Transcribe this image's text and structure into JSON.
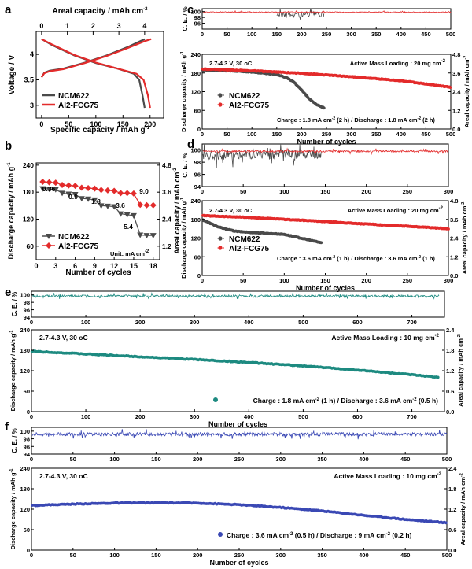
{
  "colors": {
    "black": "#4a4a4a",
    "red": "#e32b2b",
    "teal": "#1d8a80",
    "blue": "#3a48b4",
    "grid": "#000000"
  },
  "chart_data": [
    {
      "id": "a",
      "panel_label": "a",
      "type": "line",
      "xlabel": "Specific capacity / mAh g",
      "xlabel_sup": "-1",
      "top_xlabel": "Areal capacity / mAh cm",
      "top_xlabel_sup": "-2",
      "ylabel": "Voltage / V",
      "xlim": [
        -10,
        225
      ],
      "ylim": [
        2.75,
        4.45
      ],
      "xticks": [
        0,
        50,
        100,
        150,
        200
      ],
      "top_xticks": [
        0,
        1,
        2,
        3,
        4
      ],
      "yticks": [
        3.0,
        3.5,
        4.0
      ],
      "legend": [
        {
          "name": "NCM622",
          "color": "black"
        },
        {
          "name": "Al2-FCG75",
          "color": "red"
        }
      ],
      "series": [
        {
          "name": "NCM622 charge",
          "color": "black",
          "x": [
            0,
            5,
            15,
            40,
            80,
            120,
            160,
            180,
            190
          ],
          "y": [
            3.55,
            3.64,
            3.68,
            3.72,
            3.84,
            3.98,
            4.15,
            4.25,
            4.3
          ]
        },
        {
          "name": "NCM622 discharge",
          "color": "black",
          "x": [
            0,
            20,
            60,
            100,
            140,
            170,
            180,
            186,
            190
          ],
          "y": [
            4.3,
            4.18,
            3.98,
            3.83,
            3.72,
            3.62,
            3.5,
            3.2,
            2.95
          ]
        },
        {
          "name": "Al2-FCG75 charge",
          "color": "red",
          "x": [
            0,
            5,
            15,
            40,
            80,
            120,
            160,
            190,
            202
          ],
          "y": [
            3.55,
            3.63,
            3.67,
            3.71,
            3.83,
            3.97,
            4.13,
            4.26,
            4.3
          ]
        },
        {
          "name": "Al2-FCG75 discharge",
          "color": "red",
          "x": [
            0,
            20,
            60,
            100,
            140,
            175,
            188,
            196,
            200
          ],
          "y": [
            4.3,
            4.19,
            3.99,
            3.84,
            3.72,
            3.62,
            3.5,
            3.2,
            2.95
          ]
        }
      ]
    },
    {
      "id": "b",
      "panel_label": "b",
      "type": "scatter",
      "xlabel": "Number of cycles",
      "ylabel": "Discharge capacity / mAh g",
      "ylabel_sup": "-1",
      "ylabel_right": "Areal capacity / mAh cm",
      "ylabel_right_sup": "-2",
      "xlim": [
        0,
        19
      ],
      "ylim": [
        30,
        245
      ],
      "right_ylim": [
        0.6,
        4.9
      ],
      "xticks": [
        0,
        3,
        6,
        9,
        12,
        15,
        18
      ],
      "yticks": [
        60,
        120,
        180,
        240
      ],
      "right_yticks": [
        1.2,
        2.4,
        3.6,
        4.8
      ],
      "legend": [
        {
          "name": "NCM622",
          "color": "black"
        },
        {
          "name": "Al2-FCG75",
          "color": "red"
        }
      ],
      "unit_note": "Unit: mA cm",
      "unit_note_sup": "-2",
      "rate_labels": [
        "0.36",
        "0.9",
        "1.8",
        "3.6",
        "5.4",
        "9.0"
      ],
      "series": [
        {
          "name": "NCM622",
          "color": "black",
          "marker": "triangle-down",
          "x": [
            1,
            2,
            3,
            4,
            5,
            6,
            7,
            8,
            9,
            10,
            11,
            12,
            13,
            14,
            15,
            16,
            17,
            18
          ],
          "y": [
            188,
            187,
            186,
            178,
            176,
            175,
            166,
            165,
            163,
            150,
            149,
            148,
            132,
            130,
            128,
            85,
            84,
            84
          ]
        },
        {
          "name": "Al2-FCG75",
          "color": "red",
          "marker": "diamond",
          "x": [
            1,
            2,
            3,
            4,
            5,
            6,
            7,
            8,
            9,
            10,
            11,
            12,
            13,
            14,
            15,
            16,
            17,
            18
          ],
          "y": [
            203,
            202,
            201,
            196,
            195,
            194,
            190,
            189,
            188,
            185,
            184,
            183,
            178,
            178,
            177,
            152,
            151,
            151
          ]
        }
      ]
    },
    {
      "id": "c",
      "panel_label": "c",
      "type": "scatter",
      "ce_ylabel": "C. E. / %",
      "ce_ylim": [
        94,
        101
      ],
      "ce_yticks": [
        96,
        98,
        100
      ],
      "ce_series": [
        {
          "name": "NCM622",
          "color": "black",
          "xmin": 150,
          "xmax": 245,
          "base": 99.0,
          "noise": 2.0
        },
        {
          "name": "Al2-FCG75",
          "color": "red",
          "xmin": 1,
          "xmax": 500,
          "base": 99.8,
          "noise": 0.3
        }
      ],
      "xlabel": "Number of cycles",
      "xlim": [
        0,
        500
      ],
      "xticks": [
        0,
        50,
        100,
        150,
        200,
        250,
        300,
        350,
        400,
        450,
        500
      ],
      "ylabel": "Discharge capacity / mAh g",
      "ylabel_sup": "-1",
      "ylim": [
        0,
        240
      ],
      "yticks": [
        0,
        60,
        120,
        180,
        240
      ],
      "ylabel_right": "Areal capacity / mAh cm",
      "ylabel_right_sup": "-2",
      "right_yticks": [
        "0.0",
        "1.2",
        "2.4",
        "3.6",
        "4.8"
      ],
      "conditions": "2.7-4.3 V, 30 ",
      "conditions_unit": "oC",
      "loading": "Active Mass Loading : 20 mg cm",
      "loading_sup": "-2",
      "protocol_parts": [
        "Charge : 1.8 mA cm",
        "-2",
        " (2 h) / Discharge : 1.8 mA cm",
        "-2",
        " (2 h)"
      ],
      "legend": [
        {
          "name": "NCM622",
          "color": "black"
        },
        {
          "name": "Al2-FCG75",
          "color": "red"
        }
      ],
      "series": [
        {
          "name": "NCM622",
          "color": "black",
          "x": [
            1,
            50,
            100,
            150,
            170,
            185,
            200,
            215,
            230,
            245
          ],
          "y": [
            190,
            187,
            183,
            175,
            165,
            150,
            125,
            98,
            78,
            68
          ]
        },
        {
          "name": "Al2-FCG75",
          "color": "red",
          "x": [
            1,
            100,
            200,
            300,
            400,
            450,
            500
          ],
          "y": [
            193,
            187,
            179,
            168,
            155,
            145,
            134
          ]
        }
      ]
    },
    {
      "id": "d",
      "panel_label": "d",
      "type": "scatter",
      "ce_ylabel": "C. E. / %",
      "ce_ylim": [
        94,
        101
      ],
      "ce_yticks": [
        94,
        96,
        98,
        100
      ],
      "ce_series": [
        {
          "name": "NCM622",
          "color": "black",
          "xmin": 1,
          "xmax": 145,
          "base": 99.2,
          "noise": 1.5
        },
        {
          "name": "Al2-FCG75",
          "color": "red",
          "xmin": 1,
          "xmax": 300,
          "base": 99.8,
          "noise": 0.3
        }
      ],
      "xlabel": "Number of cycles",
      "xlim": [
        0,
        300
      ],
      "xticks": [
        0,
        50,
        100,
        150,
        200,
        250,
        300
      ],
      "ylabel": "Discharge capacity / mAh g",
      "ylabel_sup": "-1",
      "ylim": [
        0,
        240
      ],
      "yticks": [
        0,
        60,
        120,
        180,
        240
      ],
      "ylabel_right": "Areal capacity / mAh cm",
      "ylabel_right_sup": "-2",
      "right_yticks": [
        "0.0",
        "1.2",
        "2.4",
        "3.6",
        "4.8"
      ],
      "conditions": "2.7-4.3 V, 30 ",
      "conditions_unit": "oC",
      "loading": "Active Mass Loading : 20 mg cm",
      "loading_sup": "-2",
      "protocol_parts": [
        "Charge : 3.6 mA cm",
        "-2",
        " (1 h) / Discharge : 3.6 mA cm",
        "-2",
        " (1 h)"
      ],
      "legend": [
        {
          "name": "NCM622",
          "color": "black"
        },
        {
          "name": "Al2-FCG75",
          "color": "red"
        }
      ],
      "series": [
        {
          "name": "NCM622",
          "color": "black",
          "x": [
            1,
            20,
            40,
            60,
            80,
            100,
            120,
            140,
            145
          ],
          "y": [
            178,
            155,
            142,
            138,
            135,
            132,
            120,
            108,
            105
          ]
        },
        {
          "name": "Al2-FCG75",
          "color": "red",
          "x": [
            1,
            50,
            100,
            150,
            200,
            250,
            300
          ],
          "y": [
            192,
            187,
            180,
            173,
            165,
            158,
            150
          ]
        }
      ]
    },
    {
      "id": "e",
      "panel_label": "e",
      "type": "scatter",
      "ce_ylabel": "C. E. / %",
      "ce_ylim": [
        94,
        101
      ],
      "ce_yticks": [
        94,
        96,
        98,
        100
      ],
      "ce_series": [
        {
          "name": "Al2-FCG75",
          "color": "teal",
          "xmin": 1,
          "xmax": 750,
          "base": 99.7,
          "noise": 0.6
        }
      ],
      "xlabel": "Number of cycles",
      "xlim": [
        0,
        760
      ],
      "xticks": [
        0,
        100,
        200,
        300,
        400,
        500,
        600,
        700
      ],
      "ylabel": "Discharge capacity / mAh g",
      "ylabel_sup": "-1",
      "ylim": [
        0,
        240
      ],
      "yticks": [
        0,
        60,
        120,
        180,
        240
      ],
      "ylabel_right": "Areal capacity / mAh cm",
      "ylabel_right_sup": "-2",
      "right_yticks": [
        "0.0",
        "0.6",
        "1.2",
        "1.8",
        "2.4"
      ],
      "conditions": "2.7-4.3 V, 30 ",
      "conditions_unit": "oC",
      "loading": "Active Mass Loading : 10 mg cm",
      "loading_sup": "-2",
      "protocol_parts": [
        "Charge : 1.8 mA cm",
        "-2",
        " (1 h) / Discharge : 3.6 mA cm",
        "-2",
        " (0.5 h)"
      ],
      "series": [
        {
          "name": "Al2-FCG75",
          "color": "teal",
          "x": [
            1,
            100,
            200,
            300,
            400,
            500,
            600,
            700,
            750
          ],
          "y": [
            177,
            169,
            161,
            153,
            144,
            134,
            122,
            108,
            100
          ]
        }
      ]
    },
    {
      "id": "f",
      "panel_label": "f",
      "type": "scatter",
      "ce_ylabel": "C. E. / %",
      "ce_ylim": [
        94,
        101
      ],
      "ce_yticks": [
        94,
        96,
        98,
        100
      ],
      "ce_series": [
        {
          "name": "Al2-FCG75",
          "color": "blue",
          "xmin": 1,
          "xmax": 500,
          "base": 99.2,
          "noise": 0.9
        }
      ],
      "xlabel": "Number of cycles",
      "xlim": [
        0,
        500
      ],
      "xticks": [
        0,
        50,
        100,
        150,
        200,
        250,
        300,
        350,
        400,
        450,
        500
      ],
      "ylabel": "Discharge capacity / mAh g",
      "ylabel_sup": "-1",
      "ylim": [
        0,
        240
      ],
      "yticks": [
        0,
        60,
        120,
        180,
        240
      ],
      "ylabel_right": "Areal capacity / mAh cm",
      "ylabel_right_sup": "-2",
      "right_yticks": [
        "0.0",
        "0.6",
        "1.2",
        "1.8",
        "2.4"
      ],
      "conditions": "2.7-4.3 V, 30 ",
      "conditions_unit": "oC",
      "loading": "Active Mass Loading : 10 mg cm",
      "loading_sup": "-2",
      "protocol_parts": [
        "Charge : 3.6 mA cm",
        "-2",
        " (0.5 h) / Discharge : 9 mA cm",
        "-2",
        " (0.2 h)"
      ],
      "series": [
        {
          "name": "Al2-FCG75",
          "color": "blue",
          "x": [
            1,
            50,
            100,
            150,
            200,
            250,
            300,
            350,
            400,
            450,
            500
          ],
          "y": [
            131,
            135,
            138,
            139,
            138,
            133,
            125,
            115,
            102,
            90,
            80
          ]
        }
      ]
    }
  ]
}
